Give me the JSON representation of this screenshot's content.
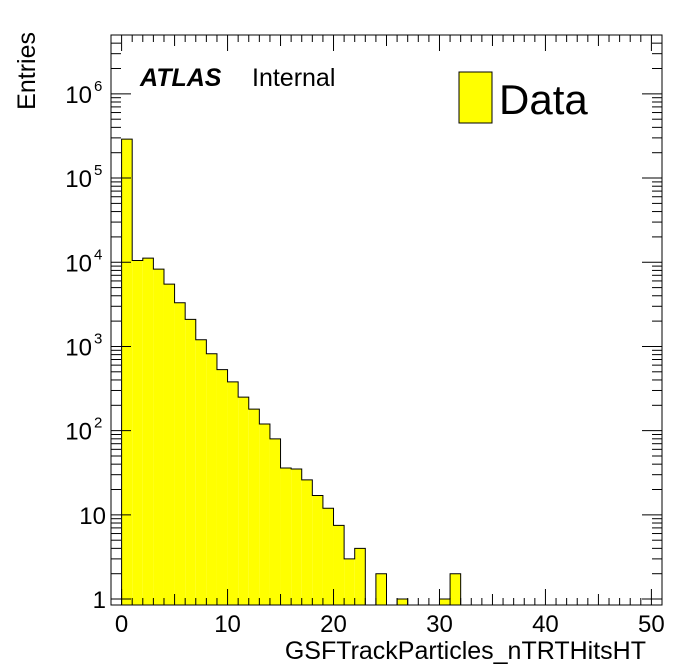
{
  "chart_data": {
    "type": "bar",
    "x_bin_edges_start": -1,
    "bin_width": 1,
    "x": [
      -0.5,
      0.5,
      1.5,
      2.5,
      3.5,
      4.5,
      5.5,
      6.5,
      7.5,
      8.5,
      9.5,
      10.5,
      11.5,
      12.5,
      13.5,
      14.5,
      15.5,
      16.5,
      17.5,
      18.5,
      19.5,
      20.5,
      21.5,
      22.5,
      23.5,
      24.5,
      25.5,
      26.5,
      27.5,
      28.5,
      29.5,
      30.5,
      31.5,
      32.5,
      33.5,
      34.5,
      35.5,
      36.5,
      37.5,
      38.5,
      39.5,
      40.5,
      41.5,
      42.5,
      43.5,
      44.5,
      45.5,
      46.5,
      47.5,
      48.5,
      49.5,
      50.5
    ],
    "values": [
      0,
      290000,
      10500,
      11200,
      8300,
      5500,
      3300,
      2100,
      1200,
      820,
      530,
      380,
      250,
      180,
      120,
      80,
      36,
      35,
      26,
      17,
      12,
      7.5,
      3,
      4,
      0,
      2,
      0,
      1,
      0,
      0,
      0,
      1,
      2,
      0,
      0,
      0,
      0,
      0,
      0,
      0,
      0,
      0,
      0,
      0,
      0,
      0,
      0,
      0,
      0,
      0,
      0,
      0
    ],
    "xlabel": "GSFTrackParticles_nTRTHitsHT",
    "ylabel": "Entries",
    "xlim": [
      -1,
      51
    ],
    "ylim": [
      0.85,
      5000000
    ],
    "yscale": "log",
    "x_tick_labels": [
      "0",
      "10",
      "20",
      "30",
      "40",
      "50"
    ],
    "y_tick_labels": [
      "1",
      "10",
      "10",
      "10",
      "10",
      "10",
      "10"
    ],
    "y_tick_exponents": [
      "",
      "",
      "2",
      "3",
      "4",
      "5",
      "6"
    ],
    "fill_color": "#ffff00",
    "edge_color": "#000000",
    "legend": {
      "label": "Data",
      "placement": "top-right"
    },
    "annotation": {
      "bold": "ATLAS",
      "text": "Internal"
    },
    "series": [
      {
        "name": "Data"
      }
    ]
  }
}
